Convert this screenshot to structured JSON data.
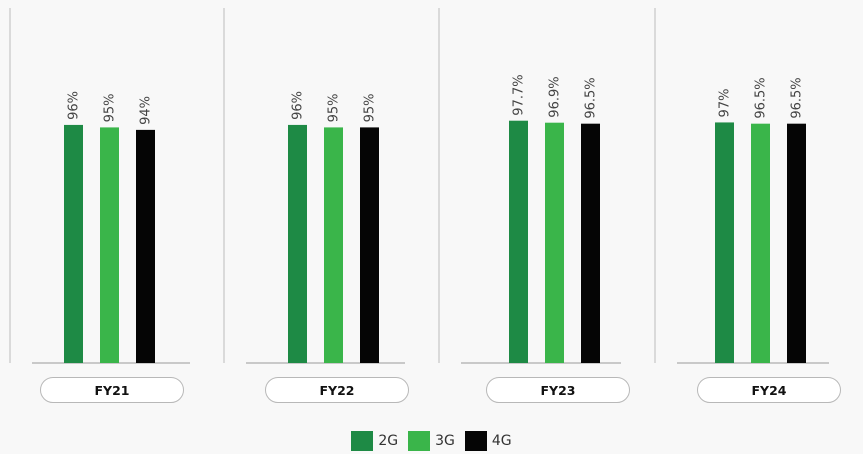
{
  "chart_data": {
    "type": "bar",
    "title": "",
    "xlabel": "",
    "ylabel": "",
    "categories": [
      "FY21",
      "FY22",
      "FY23",
      "FY24"
    ],
    "ylim": [
      0,
      100
    ],
    "grid": false,
    "legend_position": "bottom-center",
    "series": [
      {
        "name": "2G",
        "color": "#1e8a45",
        "values": [
          96,
          96,
          97.7,
          97
        ],
        "labels": [
          "96%",
          "96%",
          "97.7%",
          "97%"
        ]
      },
      {
        "name": "3G",
        "color": "#3ab54a",
        "values": [
          95,
          95,
          96.9,
          96.5
        ],
        "labels": [
          "95%",
          "95%",
          "96.9%",
          "96.5%"
        ]
      },
      {
        "name": "4G",
        "color": "#050505",
        "values": [
          94,
          95,
          96.5,
          96.5
        ],
        "labels": [
          "94%",
          "95%",
          "96.5%",
          "96.5%"
        ]
      }
    ]
  }
}
